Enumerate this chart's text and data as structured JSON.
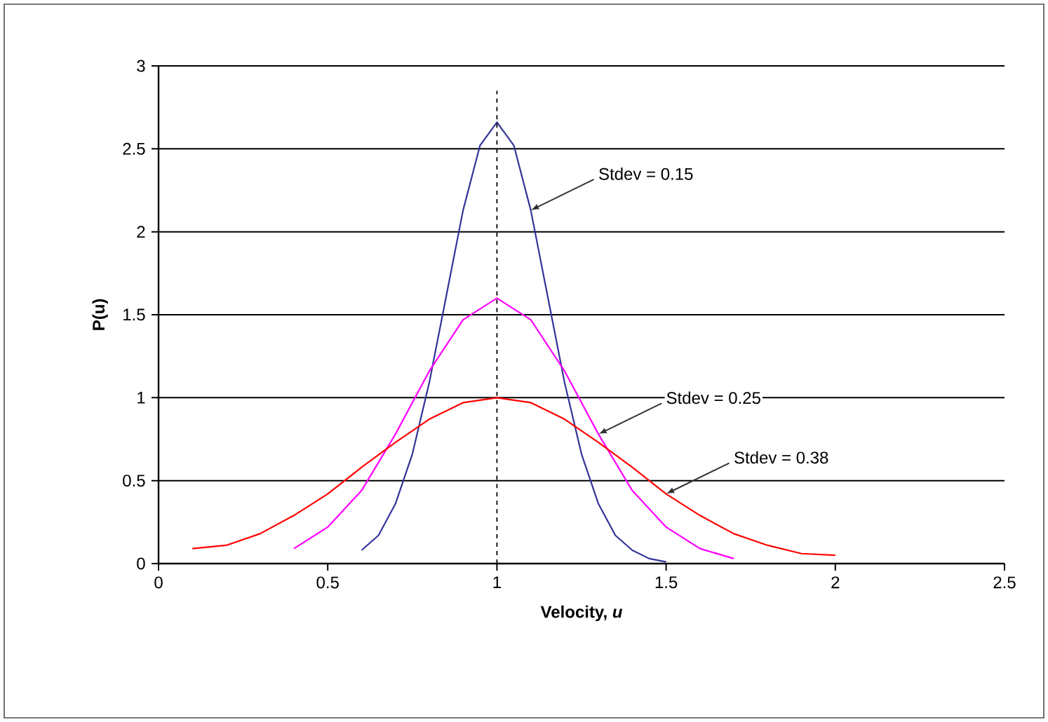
{
  "chart_data": {
    "type": "line",
    "xlabel": "Velocity, *u*",
    "ylabel": "P(u)",
    "xlim": [
      0,
      2.5
    ],
    "ylim": [
      0,
      3
    ],
    "xticks": [
      0,
      0.5,
      1,
      1.5,
      2,
      2.5
    ],
    "yticks": [
      0,
      0.5,
      1,
      1.5,
      2,
      2.5,
      3
    ],
    "grid": "y",
    "marker": "none",
    "line_style": "solid",
    "series": [
      {
        "color": "#333399",
        "x": [
          0.6,
          0.65,
          0.7,
          0.75,
          0.8,
          0.85,
          0.9,
          0.95,
          1.0,
          1.05,
          1.1,
          1.15,
          1.2,
          1.25,
          1.3,
          1.35,
          1.4,
          1.45,
          1.5
        ],
        "values": [
          0.08,
          0.17,
          0.36,
          0.66,
          1.09,
          1.61,
          2.13,
          2.52,
          2.66,
          2.52,
          2.13,
          1.61,
          1.09,
          0.66,
          0.36,
          0.17,
          0.08,
          0.03,
          0.01
        ]
      },
      {
        "color": "#ff00ff",
        "x": [
          0.4,
          0.5,
          0.6,
          0.7,
          0.8,
          0.9,
          1.0,
          1.1,
          1.2,
          1.3,
          1.4,
          1.5,
          1.6,
          1.7
        ],
        "values": [
          0.09,
          0.22,
          0.44,
          0.78,
          1.16,
          1.47,
          1.6,
          1.47,
          1.16,
          0.78,
          0.44,
          0.22,
          0.09,
          0.03
        ]
      },
      {
        "color": "#ff0000",
        "x": [
          0.1,
          0.2,
          0.3,
          0.4,
          0.5,
          0.6,
          0.7,
          0.8,
          0.9,
          1.0,
          1.1,
          1.2,
          1.3,
          1.4,
          1.5,
          1.6,
          1.7,
          1.8,
          1.9,
          2.0
        ],
        "values": [
          0.09,
          0.11,
          0.18,
          0.29,
          0.42,
          0.58,
          0.73,
          0.87,
          0.97,
          1.0,
          0.97,
          0.87,
          0.73,
          0.58,
          0.42,
          0.29,
          0.18,
          0.11,
          0.06,
          0.05
        ]
      }
    ],
    "ref_lines": [
      {
        "axis": "x",
        "value": 1,
        "line_style": "dashed",
        "color": "#000000"
      }
    ],
    "annotations": [
      {
        "text": "Stdev = 0.15",
        "x": 1.1,
        "y": 2.13
      },
      {
        "text": "Stdev = 0.25",
        "x": 1.3,
        "y": 0.78
      },
      {
        "text": "Stdev = 0.38",
        "x": 1.5,
        "y": 0.42
      }
    ]
  }
}
